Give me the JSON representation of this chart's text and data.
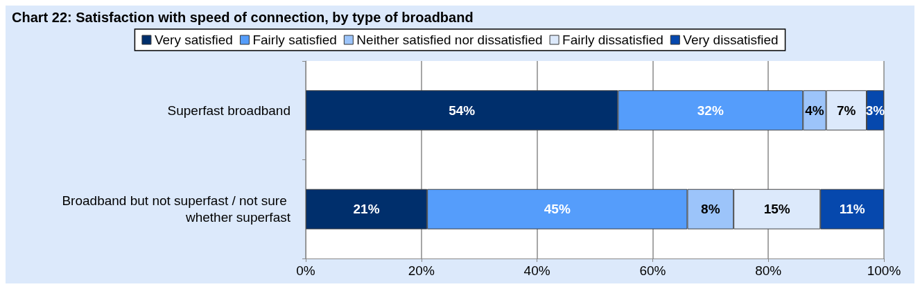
{
  "chart_data": {
    "type": "bar",
    "orientation": "horizontal",
    "stacked": true,
    "title": "Chart 22: Satisfaction with speed of connection, by type of broadband",
    "categories": [
      "Superfast broadband",
      "Broadband but not superfast / not sure whether superfast"
    ],
    "series": [
      {
        "name": "Very satisfied",
        "color": "#002f6c",
        "values": [
          54,
          21
        ],
        "value_labels": [
          "54%",
          "21%"
        ]
      },
      {
        "name": "Fairly satisfied",
        "color": "#559dfb",
        "values": [
          32,
          45
        ],
        "value_labels": [
          "32%",
          "45%"
        ]
      },
      {
        "name": "Neither satisfied nor dissatisfied",
        "color": "#9cc4fa",
        "values": [
          4,
          8
        ],
        "value_labels": [
          "4%",
          "8%"
        ]
      },
      {
        "name": "Fairly dissatisfied",
        "color": "#dce9fb",
        "values": [
          7,
          15
        ],
        "value_labels": [
          "7%",
          "15%"
        ]
      },
      {
        "name": "Very dissatisfied",
        "color": "#0648ad",
        "values": [
          3,
          11
        ],
        "value_labels": [
          "3%",
          "11%"
        ]
      }
    ],
    "xlim": [
      0,
      100
    ],
    "xticks": [
      {
        "value": 0,
        "label": "0%"
      },
      {
        "value": 20,
        "label": "20%"
      },
      {
        "value": 40,
        "label": "40%"
      },
      {
        "value": 60,
        "label": "60%"
      },
      {
        "value": 80,
        "label": "80%"
      },
      {
        "value": 100,
        "label": "100%"
      }
    ],
    "grid": "x",
    "legend": "top"
  }
}
